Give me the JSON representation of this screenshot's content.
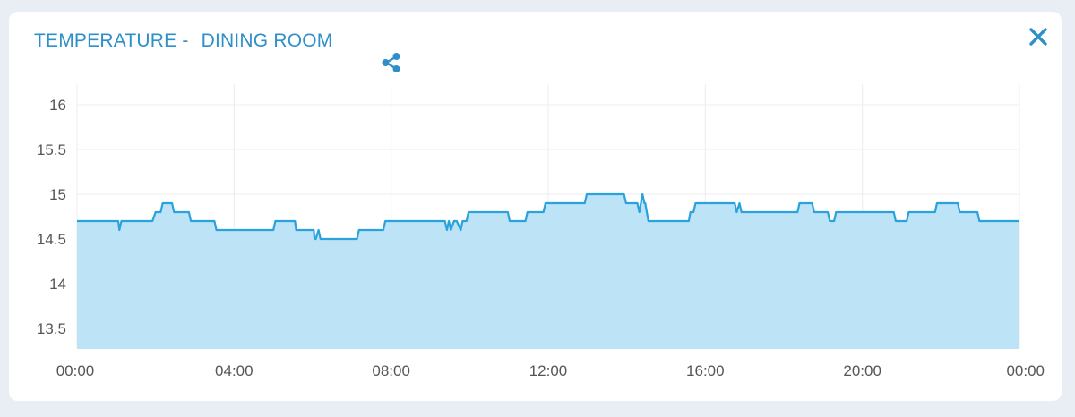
{
  "header": {
    "title_prefix": "TEMPERATURE -",
    "title_room": "DINING ROOM",
    "share_icon": "share-icon",
    "close_icon": "close-icon"
  },
  "colors": {
    "accent": "#2f8fc8",
    "line": "#2aa2dc",
    "fill": "#bde3f6",
    "grid": "#ececec"
  },
  "chart_data": {
    "type": "area",
    "title": "",
    "xlabel": "",
    "ylabel": "",
    "xlim": [
      0,
      24
    ],
    "ylim": [
      13.27,
      16.23
    ],
    "x_tick_values": [
      0,
      4,
      8,
      12,
      16,
      20,
      24
    ],
    "x_tick_labels": [
      "00:00",
      "04:00",
      "08:00",
      "12:00",
      "16:00",
      "20:00",
      "00:00"
    ],
    "y_tick_values": [
      13.5,
      14,
      14.5,
      15,
      15.5,
      16
    ],
    "y_tick_labels": [
      "13.5",
      "14",
      "14.5",
      "15",
      "15.5",
      "16"
    ],
    "grid": true,
    "series": [
      {
        "x": [
          0.0,
          1.05,
          1.08,
          1.13,
          1.18,
          1.92,
          2.0,
          2.13,
          2.18,
          2.42,
          2.47,
          2.85,
          2.9,
          3.5,
          3.55,
          4.45,
          4.5,
          5.0,
          5.05,
          5.55,
          5.58,
          5.98,
          6.03,
          6.05,
          6.08,
          6.15,
          6.2,
          6.42,
          6.48,
          6.55,
          6.62,
          7.13,
          7.18,
          7.8,
          7.85,
          9.37,
          9.42,
          9.47,
          9.52,
          9.6,
          9.67,
          9.77,
          9.82,
          9.92,
          9.97,
          10.02,
          10.07,
          10.97,
          11.02,
          11.42,
          11.47,
          11.88,
          11.93,
          12.93,
          12.98,
          13.93,
          13.98,
          14.27,
          14.32,
          14.4,
          14.45,
          14.47,
          14.55,
          14.75,
          14.8,
          15.58,
          15.62,
          15.7,
          15.75,
          16.75,
          16.8,
          16.87,
          16.92,
          17.92,
          17.97,
          18.35,
          18.4,
          18.72,
          18.77,
          19.12,
          19.17,
          19.28,
          19.33,
          20.8,
          20.85,
          21.13,
          21.18,
          21.85,
          21.9,
          22.43,
          22.48,
          22.93,
          22.98,
          24.0
        ],
        "y": [
          14.7,
          14.7,
          14.6,
          14.7,
          14.7,
          14.7,
          14.8,
          14.8,
          14.9,
          14.9,
          14.8,
          14.8,
          14.7,
          14.7,
          14.6,
          14.6,
          14.6,
          14.6,
          14.7,
          14.7,
          14.6,
          14.6,
          14.6,
          14.5,
          14.5,
          14.6,
          14.5,
          14.5,
          14.5,
          14.5,
          14.5,
          14.5,
          14.6,
          14.6,
          14.7,
          14.7,
          14.6,
          14.7,
          14.6,
          14.7,
          14.7,
          14.6,
          14.7,
          14.7,
          14.8,
          14.8,
          14.8,
          14.8,
          14.7,
          14.7,
          14.8,
          14.8,
          14.9,
          14.9,
          15.0,
          15.0,
          14.9,
          14.9,
          14.8,
          15.0,
          14.9,
          14.9,
          14.7,
          14.7,
          14.7,
          14.7,
          14.8,
          14.8,
          14.9,
          14.9,
          14.8,
          14.9,
          14.8,
          14.8,
          14.8,
          14.8,
          14.9,
          14.9,
          14.8,
          14.8,
          14.7,
          14.7,
          14.8,
          14.8,
          14.7,
          14.7,
          14.8,
          14.8,
          14.9,
          14.9,
          14.8,
          14.8,
          14.7,
          14.7
        ]
      }
    ]
  }
}
